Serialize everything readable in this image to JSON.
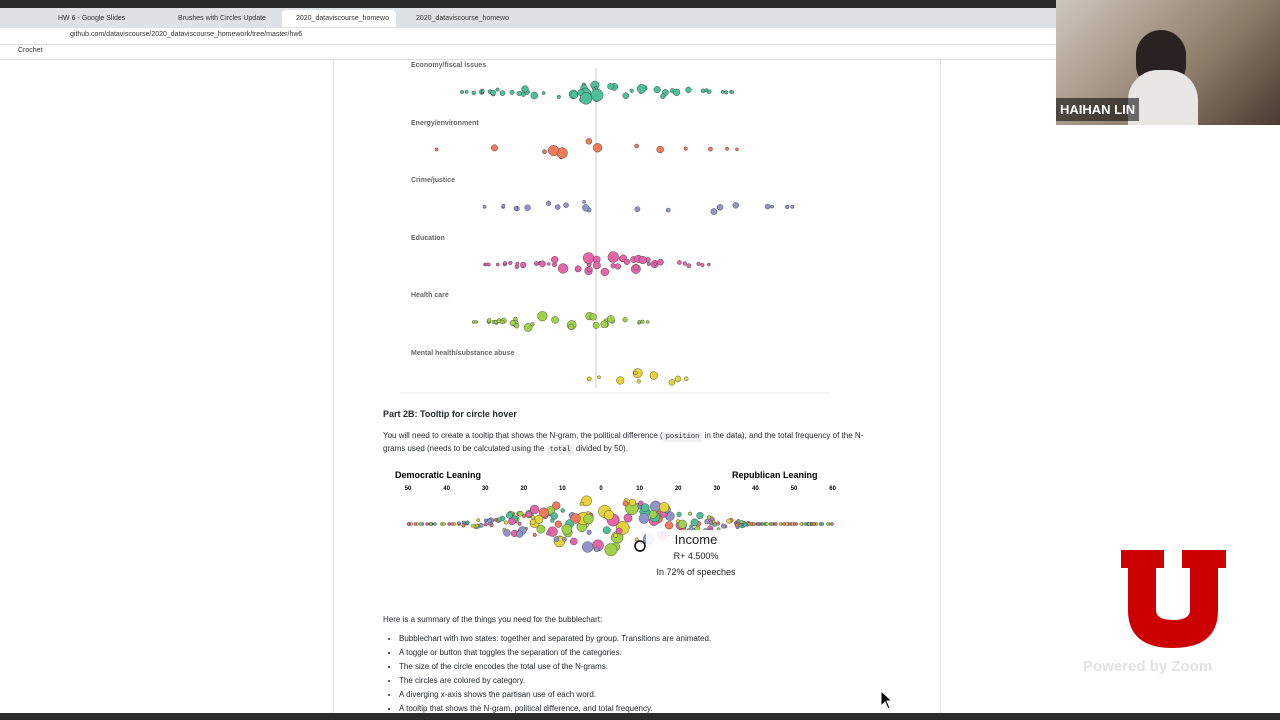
{
  "browser": {
    "tabs": [
      "HW 6 - Google Slides",
      "Brushes with Circles Update",
      "2020_dataviscourse_homewo",
      "2020_dataviscourse_homewo"
    ],
    "url": "github.com/dataviscourse/2020_dataviscourse_homework/tree/master/hw6",
    "bookmark": "Crochet"
  },
  "groups": [
    "Economy/fiscal issues",
    "Energy/environment",
    "Crime/justice",
    "Education",
    "Health care",
    "Mental health/substance abuse"
  ],
  "section": {
    "heading": "Part 2B: Tooltip for circle hover",
    "text_1": "You will need to create a tooltip that shows the N-gram, the political difference (",
    "code_1": "position",
    "text_2": " in the data), and the total frequency of the N-",
    "text_3": "grams used (needs to be calculated using the ",
    "code_2": "total",
    "text_4": " divided by 50)."
  },
  "diverging_chart": {
    "left_label": "Democratic Leaning",
    "right_label": "Republican Leaning",
    "ticks": [
      "50",
      "40",
      "30",
      "20",
      "10",
      "0",
      "10",
      "20",
      "30",
      "40",
      "50",
      "60"
    ],
    "tooltip": {
      "title": "Income",
      "difference": "R+ 4.500%",
      "frequency": "In 72% of speeches"
    }
  },
  "summary": {
    "intro": "Here is a summary of the things you need for the bubblechart:",
    "items": [
      "Bubblechart with two states: together and separated by group. Transitions are animated.",
      "A toggle or button that toggles the separation of the categories.",
      "The size of the circle encodes the total use of the N-grams.",
      "The circles are colored by category.",
      "A diverging x-axis shows the partisan use of each word.",
      "A tooltip that shows the N-gram, political difference, and total frequency."
    ]
  },
  "zoom": {
    "name": "HAIHAN LIN",
    "powered": "Powered by Zoom"
  }
}
